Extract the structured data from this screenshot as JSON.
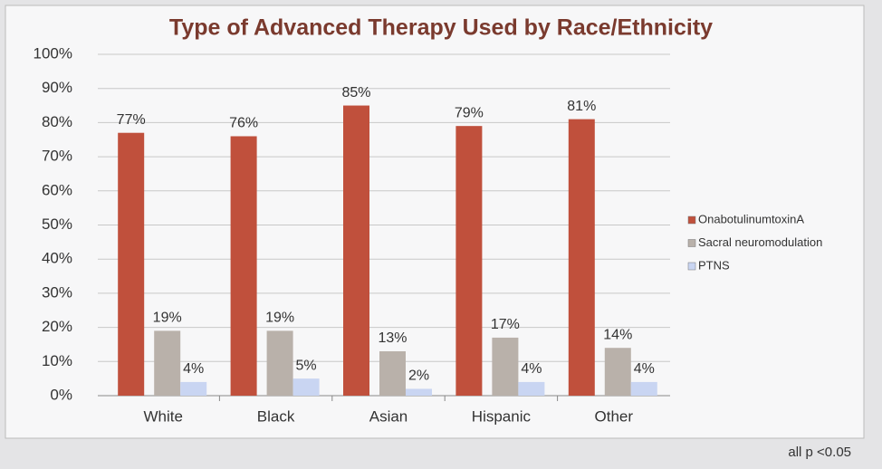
{
  "chart_data": {
    "type": "bar",
    "title": "Type of Advanced Therapy Used by Race/Ethnicity",
    "categories": [
      "White",
      "Black",
      "Asian",
      "Hispanic",
      "Other"
    ],
    "series": [
      {
        "name": "OnabotulinumtoxinA",
        "color": "#c0503c",
        "values": [
          77,
          76,
          85,
          79,
          81
        ],
        "value_labels": [
          "77%",
          "76%",
          "85%",
          "79%",
          "81%"
        ]
      },
      {
        "name": "Sacral neuromodulation",
        "color": "#b9b1aa",
        "values": [
          19,
          19,
          13,
          17,
          14
        ],
        "value_labels": [
          "19%",
          "19%",
          "13%",
          "17%",
          "14%"
        ]
      },
      {
        "name": "PTNS",
        "color": "#c9d5f2",
        "values": [
          4,
          5,
          2,
          4,
          4
        ],
        "value_labels": [
          "4%",
          "5%",
          "2%",
          "4%",
          "4%"
        ]
      }
    ],
    "ylim": [
      0,
      100
    ],
    "yticks": [
      {
        "value": 0,
        "label": "0%"
      },
      {
        "value": 10,
        "label": "10%"
      },
      {
        "value": 20,
        "label": "20%"
      },
      {
        "value": 30,
        "label": "30%"
      },
      {
        "value": 40,
        "label": "40%"
      },
      {
        "value": 50,
        "label": "50%"
      },
      {
        "value": 60,
        "label": "60%"
      },
      {
        "value": 70,
        "label": "70%"
      },
      {
        "value": 80,
        "label": "80%"
      },
      {
        "value": 90,
        "label": "90%"
      },
      {
        "value": 100,
        "label": "100%"
      }
    ],
    "grid": true,
    "legend": "right",
    "note": "all p <0.05"
  }
}
